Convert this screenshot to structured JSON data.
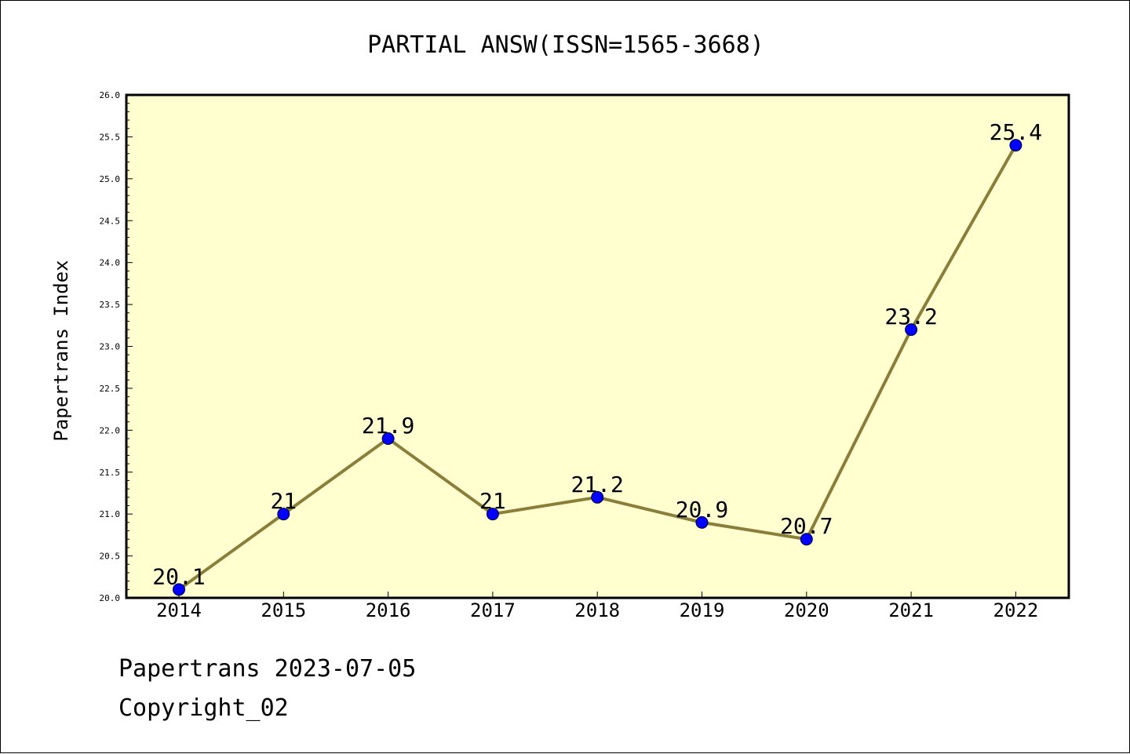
{
  "chart_data": {
    "type": "line",
    "title": "PARTIAL ANSW(ISSN=1565-3668)",
    "xlabel": "",
    "ylabel": "Papertrans Index",
    "categories": [
      "2014",
      "2015",
      "2016",
      "2017",
      "2018",
      "2019",
      "2020",
      "2021",
      "2022"
    ],
    "series": [
      {
        "values": [
          20.1,
          21,
          21.9,
          21,
          21.2,
          20.9,
          20.7,
          23.2,
          25.4
        ],
        "data_labels": [
          "20.1",
          "21",
          "21.9",
          "21",
          "21.2",
          "20.9",
          "20.7",
          "23.2",
          "25.4"
        ]
      }
    ],
    "ylim": [
      20.0,
      26.0
    ],
    "yticks": [
      "20.0",
      "20.5",
      "21.0",
      "21.5",
      "22.0",
      "22.5",
      "23.0",
      "23.5",
      "24.0",
      "24.5",
      "25.0",
      "25.5",
      "26.0"
    ],
    "grid": false,
    "legend": "none",
    "colors": {
      "plot_background": "#FFFFD0",
      "line": "#8B7D3A",
      "marker": "#0000FF"
    }
  },
  "footer": {
    "line1": "Papertrans 2023-07-05",
    "line2": "Copyright_02"
  }
}
